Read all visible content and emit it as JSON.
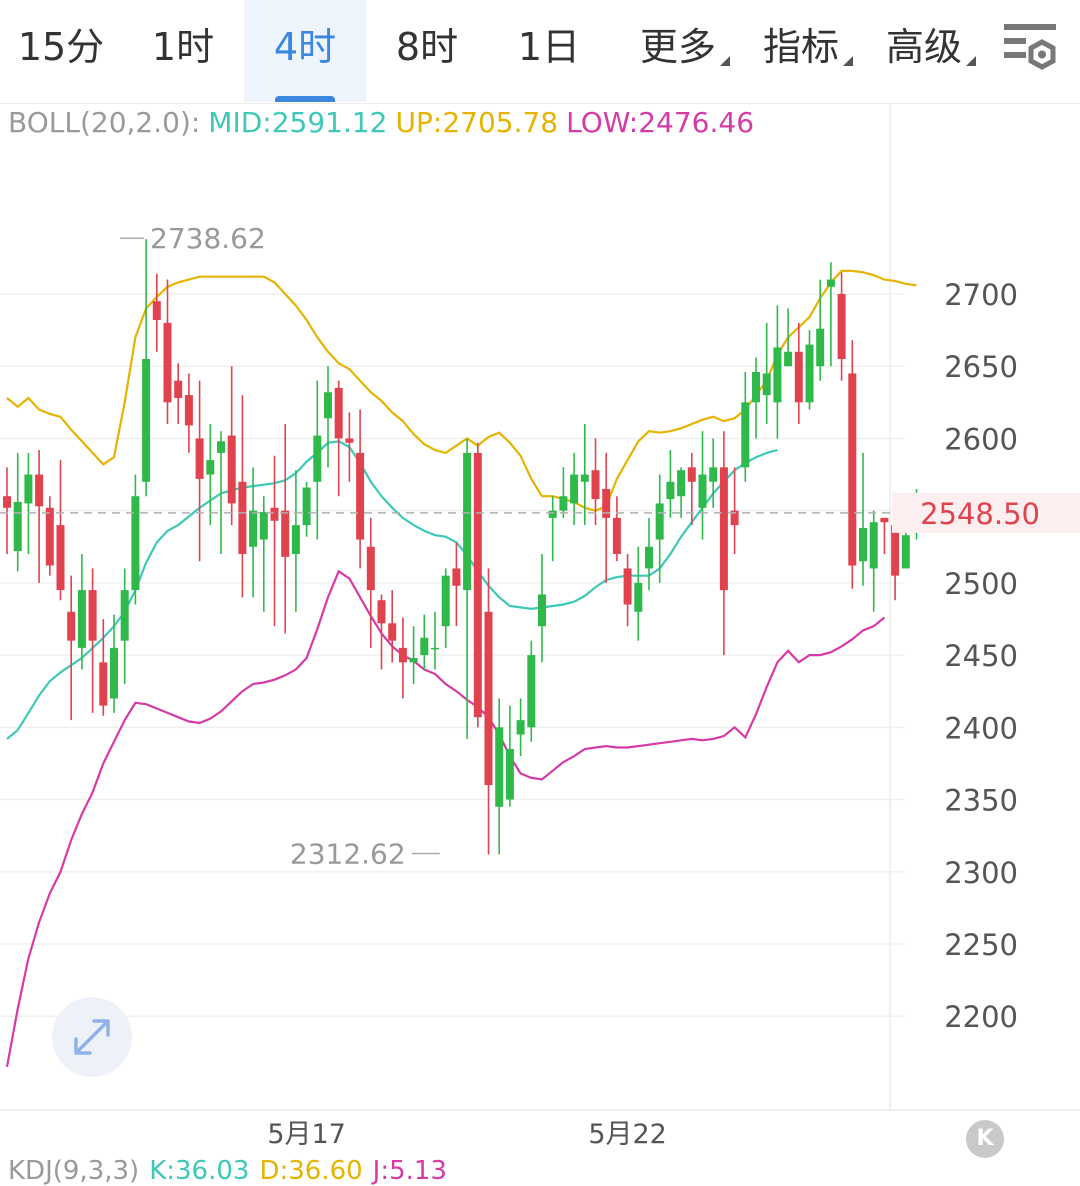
{
  "tabs": [
    {
      "label": "15分"
    },
    {
      "label": "1时"
    },
    {
      "label": "4时",
      "active": true
    },
    {
      "label": "8时"
    },
    {
      "label": "1日"
    },
    {
      "label": "更多",
      "dropdown": true
    },
    {
      "label": "指标",
      "dropdown": true
    },
    {
      "label": "高级",
      "dropdown": true
    }
  ],
  "settings_icon": "chart-settings-icon",
  "boll": {
    "label": "BOLL(20,2.0):",
    "mid": "MID:2591.12",
    "up": "UP:2705.78",
    "low": "LOW:2476.46"
  },
  "kdj": {
    "label": "KDJ(9,3,3)",
    "k": "K:36.03",
    "d": "D:36.60",
    "j": "J:5.13"
  },
  "zoom_icon": "expand-arrows-icon",
  "k_badge": "K",
  "colors": {
    "up": "#2fb94a",
    "down": "#e0434e",
    "mid": "#3ec8b7",
    "upper": "#e6b400",
    "lower": "#d63aa6",
    "active_tab": "#3a86e0",
    "price_tag": "#e0434e"
  },
  "chart_data": {
    "type": "candlestick",
    "y_ticks": [
      "2700",
      "2650",
      "2600",
      "2550",
      "2500",
      "2450",
      "2400",
      "2350",
      "2300",
      "2250",
      "2200"
    ],
    "x_labels": [
      {
        "index": 28,
        "label": "5月17"
      },
      {
        "index": 58,
        "label": "5月22"
      }
    ],
    "ylim": [
      2150,
      2755
    ],
    "current_price": "2548.50",
    "high_marker": {
      "index": 10,
      "value": "2738.62"
    },
    "low_marker": {
      "index": 41,
      "value": "2312.62"
    },
    "grid": true,
    "candles": [
      [
        2560,
        2552,
        2580,
        2520
      ],
      [
        2522,
        2556,
        2590,
        2508
      ],
      [
        2555,
        2575,
        2590,
        2520
      ],
      [
        2575,
        2553,
        2592,
        2500
      ],
      [
        2552,
        2512,
        2560,
        2505
      ],
      [
        2540,
        2495,
        2585,
        2488
      ],
      [
        2480,
        2460,
        2505,
        2405
      ],
      [
        2455,
        2495,
        2520,
        2440
      ],
      [
        2495,
        2460,
        2510,
        2410
      ],
      [
        2445,
        2415,
        2475,
        2408
      ],
      [
        2420,
        2455,
        2478,
        2410
      ],
      [
        2460,
        2495,
        2510,
        2430
      ],
      [
        2495,
        2560,
        2575,
        2485
      ],
      [
        2570,
        2655,
        2738,
        2560
      ],
      [
        2695,
        2682,
        2714,
        2660
      ],
      [
        2680,
        2625,
        2710,
        2610
      ],
      [
        2640,
        2628,
        2652,
        2610
      ],
      [
        2630,
        2609,
        2645,
        2590
      ],
      [
        2600,
        2572,
        2640,
        2515
      ],
      [
        2575,
        2585,
        2610,
        2540
      ],
      [
        2590,
        2598,
        2605,
        2520
      ],
      [
        2602,
        2555,
        2650,
        2540
      ],
      [
        2570,
        2520,
        2630,
        2490
      ],
      [
        2525,
        2550,
        2580,
        2490
      ],
      [
        2530,
        2549,
        2560,
        2480
      ],
      [
        2552,
        2543,
        2588,
        2470
      ],
      [
        2550,
        2518,
        2610,
        2465
      ],
      [
        2520,
        2540,
        2578,
        2480
      ],
      [
        2540,
        2566,
        2570,
        2532
      ],
      [
        2570,
        2602,
        2640,
        2530
      ],
      [
        2614,
        2632,
        2650,
        2580
      ],
      [
        2635,
        2600,
        2640,
        2560
      ],
      [
        2600,
        2597,
        2618,
        2570
      ],
      [
        2590,
        2530,
        2620,
        2510
      ],
      [
        2525,
        2495,
        2545,
        2455
      ],
      [
        2488,
        2472,
        2492,
        2440
      ],
      [
        2472,
        2460,
        2495,
        2445
      ],
      [
        2455,
        2445,
        2476,
        2420
      ],
      [
        2445,
        2448,
        2470,
        2430
      ],
      [
        2450,
        2462,
        2478,
        2440
      ],
      [
        2455,
        2455,
        2480,
        2440
      ],
      [
        2470,
        2505,
        2510,
        2455
      ],
      [
        2510,
        2498,
        2528,
        2470
      ],
      [
        2495,
        2590,
        2600,
        2392
      ],
      [
        2590,
        2407,
        2597,
        2400
      ],
      [
        2480,
        2360,
        2510,
        2312
      ],
      [
        2345,
        2400,
        2420,
        2312
      ],
      [
        2350,
        2385,
        2415,
        2345
      ],
      [
        2395,
        2405,
        2420,
        2380
      ],
      [
        2400,
        2450,
        2460,
        2390
      ],
      [
        2470,
        2492,
        2520,
        2445
      ],
      [
        2545,
        2550,
        2560,
        2515
      ],
      [
        2550,
        2560,
        2580,
        2545
      ],
      [
        2555,
        2575,
        2590,
        2540
      ],
      [
        2570,
        2575,
        2610,
        2540
      ],
      [
        2578,
        2558,
        2600,
        2540
      ],
      [
        2565,
        2545,
        2590,
        2500
      ],
      [
        2545,
        2520,
        2560,
        2515
      ],
      [
        2510,
        2485,
        2520,
        2470
      ],
      [
        2480,
        2500,
        2525,
        2460
      ],
      [
        2510,
        2525,
        2545,
        2495
      ],
      [
        2530,
        2555,
        2575,
        2500
      ],
      [
        2558,
        2570,
        2592,
        2545
      ],
      [
        2560,
        2578,
        2580,
        2545
      ],
      [
        2580,
        2570,
        2590,
        2540
      ],
      [
        2552,
        2575,
        2605,
        2530
      ],
      [
        2570,
        2580,
        2600,
        2552
      ],
      [
        2580,
        2495,
        2605,
        2450
      ],
      [
        2550,
        2540,
        2580,
        2520
      ],
      [
        2580,
        2625,
        2646,
        2570
      ],
      [
        2625,
        2646,
        2656,
        2600
      ],
      [
        2630,
        2645,
        2680,
        2610
      ],
      [
        2625,
        2663,
        2692,
        2600
      ],
      [
        2650,
        2660,
        2690,
        2650
      ],
      [
        2660,
        2625,
        2680,
        2610
      ],
      [
        2625,
        2665,
        2675,
        2620
      ],
      [
        2650,
        2676,
        2710,
        2640
      ],
      [
        2705,
        2710,
        2722,
        2650
      ],
      [
        2700,
        2655,
        2715,
        2640
      ],
      [
        2645,
        2512,
        2668,
        2496
      ],
      [
        2515,
        2538,
        2590,
        2498
      ],
      [
        2510,
        2542,
        2550,
        2480
      ],
      [
        2545,
        2542,
        2545,
        2520
      ],
      [
        2540,
        2505,
        2550,
        2488
      ],
      [
        2510,
        2533,
        2540,
        2512
      ],
      [
        2538,
        2545,
        2565,
        2530
      ]
    ],
    "bands": {
      "upper": [
        [
          0,
          2628
        ],
        [
          1,
          2622
        ],
        [
          2,
          2628
        ],
        [
          3,
          2620
        ],
        [
          4,
          2617
        ],
        [
          5,
          2615
        ],
        [
          6,
          2606
        ],
        [
          7,
          2598
        ],
        [
          8,
          2590
        ],
        [
          9,
          2582
        ],
        [
          10,
          2587
        ],
        [
          11,
          2625
        ],
        [
          12,
          2670
        ],
        [
          13,
          2690
        ],
        [
          14,
          2698
        ],
        [
          15,
          2705
        ],
        [
          16,
          2708
        ],
        [
          17,
          2710
        ],
        [
          18,
          2712
        ],
        [
          19,
          2712
        ],
        [
          20,
          2712
        ],
        [
          21,
          2712
        ],
        [
          22,
          2712
        ],
        [
          23,
          2712
        ],
        [
          24,
          2712
        ],
        [
          25,
          2708
        ],
        [
          26,
          2700
        ],
        [
          27,
          2692
        ],
        [
          28,
          2682
        ],
        [
          29,
          2670
        ],
        [
          30,
          2660
        ],
        [
          31,
          2652
        ],
        [
          32,
          2648
        ],
        [
          33,
          2640
        ],
        [
          34,
          2632
        ],
        [
          35,
          2626
        ],
        [
          36,
          2618
        ],
        [
          37,
          2612
        ],
        [
          38,
          2603
        ],
        [
          39,
          2596
        ],
        [
          40,
          2592
        ],
        [
          41,
          2590
        ],
        [
          42,
          2595
        ],
        [
          43,
          2600
        ],
        [
          44,
          2595
        ],
        [
          45,
          2601
        ],
        [
          46,
          2604
        ],
        [
          47,
          2597
        ],
        [
          48,
          2588
        ],
        [
          49,
          2572
        ],
        [
          50,
          2560
        ],
        [
          51,
          2560
        ],
        [
          52,
          2558
        ],
        [
          53,
          2556
        ],
        [
          54,
          2552
        ],
        [
          55,
          2550
        ],
        [
          56,
          2553
        ],
        [
          57,
          2572
        ],
        [
          58,
          2585
        ],
        [
          59,
          2598
        ],
        [
          60,
          2605
        ],
        [
          61,
          2604
        ],
        [
          62,
          2605
        ],
        [
          63,
          2607
        ],
        [
          64,
          2610
        ],
        [
          65,
          2613
        ],
        [
          66,
          2615
        ],
        [
          67,
          2612
        ],
        [
          68,
          2614
        ],
        [
          69,
          2620
        ],
        [
          70,
          2630
        ],
        [
          71,
          2640
        ],
        [
          72,
          2658
        ],
        [
          73,
          2670
        ],
        [
          74,
          2677
        ],
        [
          75,
          2684
        ],
        [
          76,
          2697
        ],
        [
          77,
          2708
        ],
        [
          78,
          2716
        ],
        [
          79,
          2716
        ],
        [
          80,
          2715
        ],
        [
          81,
          2713
        ],
        [
          82,
          2710
        ],
        [
          83,
          2709
        ],
        [
          84,
          2707
        ],
        [
          85,
          2706
        ]
      ],
      "mid": [
        [
          0,
          2392
        ],
        [
          1,
          2398
        ],
        [
          2,
          2410
        ],
        [
          3,
          2422
        ],
        [
          4,
          2432
        ],
        [
          5,
          2438
        ],
        [
          6,
          2443
        ],
        [
          7,
          2448
        ],
        [
          8,
          2455
        ],
        [
          9,
          2462
        ],
        [
          10,
          2470
        ],
        [
          11,
          2480
        ],
        [
          12,
          2495
        ],
        [
          13,
          2514
        ],
        [
          14,
          2528
        ],
        [
          15,
          2536
        ],
        [
          16,
          2540
        ],
        [
          17,
          2546
        ],
        [
          18,
          2552
        ],
        [
          19,
          2557
        ],
        [
          20,
          2562
        ],
        [
          21,
          2564
        ],
        [
          22,
          2566
        ],
        [
          23,
          2567
        ],
        [
          24,
          2568
        ],
        [
          25,
          2569
        ],
        [
          26,
          2571
        ],
        [
          27,
          2576
        ],
        [
          28,
          2584
        ],
        [
          29,
          2590
        ],
        [
          30,
          2597
        ],
        [
          31,
          2598
        ],
        [
          32,
          2594
        ],
        [
          33,
          2583
        ],
        [
          34,
          2570
        ],
        [
          35,
          2560
        ],
        [
          36,
          2552
        ],
        [
          37,
          2545
        ],
        [
          38,
          2540
        ],
        [
          39,
          2536
        ],
        [
          40,
          2533
        ],
        [
          41,
          2532
        ],
        [
          42,
          2528
        ],
        [
          43,
          2519
        ],
        [
          44,
          2508
        ],
        [
          45,
          2498
        ],
        [
          46,
          2490
        ],
        [
          47,
          2484
        ],
        [
          48,
          2483
        ],
        [
          49,
          2482
        ],
        [
          50,
          2483
        ],
        [
          51,
          2484
        ],
        [
          52,
          2485
        ],
        [
          53,
          2487
        ],
        [
          54,
          2491
        ],
        [
          55,
          2497
        ],
        [
          56,
          2502
        ],
        [
          57,
          2504
        ],
        [
          58,
          2505
        ],
        [
          59,
          2505
        ],
        [
          60,
          2505
        ],
        [
          61,
          2510
        ],
        [
          62,
          2520
        ],
        [
          63,
          2532
        ],
        [
          64,
          2542
        ],
        [
          65,
          2552
        ],
        [
          66,
          2562
        ],
        [
          67,
          2570
        ],
        [
          68,
          2578
        ],
        [
          69,
          2583
        ],
        [
          70,
          2587
        ],
        [
          71,
          2590
        ],
        [
          72,
          2592
        ]
      ],
      "lower": [
        [
          0,
          2165
        ],
        [
          1,
          2205
        ],
        [
          2,
          2240
        ],
        [
          3,
          2265
        ],
        [
          4,
          2285
        ],
        [
          5,
          2300
        ],
        [
          6,
          2322
        ],
        [
          7,
          2340
        ],
        [
          8,
          2355
        ],
        [
          9,
          2375
        ],
        [
          10,
          2390
        ],
        [
          11,
          2405
        ],
        [
          12,
          2417
        ],
        [
          13,
          2416
        ],
        [
          14,
          2413
        ],
        [
          15,
          2410
        ],
        [
          16,
          2407
        ],
        [
          17,
          2404
        ],
        [
          18,
          2403
        ],
        [
          19,
          2406
        ],
        [
          20,
          2411
        ],
        [
          21,
          2418
        ],
        [
          22,
          2425
        ],
        [
          23,
          2430
        ],
        [
          24,
          2431
        ],
        [
          25,
          2433
        ],
        [
          26,
          2436
        ],
        [
          27,
          2440
        ],
        [
          28,
          2448
        ],
        [
          29,
          2468
        ],
        [
          30,
          2490
        ],
        [
          31,
          2508
        ],
        [
          32,
          2503
        ],
        [
          33,
          2490
        ],
        [
          34,
          2477
        ],
        [
          35,
          2465
        ],
        [
          36,
          2456
        ],
        [
          37,
          2450
        ],
        [
          38,
          2446
        ],
        [
          39,
          2440
        ],
        [
          40,
          2437
        ],
        [
          41,
          2430
        ],
        [
          42,
          2425
        ],
        [
          43,
          2419
        ],
        [
          44,
          2414
        ],
        [
          45,
          2407
        ],
        [
          46,
          2395
        ],
        [
          47,
          2380
        ],
        [
          48,
          2368
        ],
        [
          49,
          2365
        ],
        [
          50,
          2364
        ],
        [
          51,
          2370
        ],
        [
          52,
          2376
        ],
        [
          53,
          2380
        ],
        [
          54,
          2385
        ],
        [
          55,
          2386
        ],
        [
          56,
          2387
        ],
        [
          57,
          2386
        ],
        [
          58,
          2386
        ],
        [
          59,
          2387
        ],
        [
          60,
          2388
        ],
        [
          61,
          2389
        ],
        [
          62,
          2390
        ],
        [
          63,
          2391
        ],
        [
          64,
          2392
        ],
        [
          65,
          2391
        ],
        [
          66,
          2392
        ],
        [
          67,
          2394
        ],
        [
          68,
          2400
        ],
        [
          69,
          2393
        ],
        [
          70,
          2409
        ],
        [
          71,
          2428
        ],
        [
          72,
          2445
        ],
        [
          73,
          2453
        ],
        [
          74,
          2445
        ],
        [
          75,
          2450
        ],
        [
          76,
          2450
        ],
        [
          77,
          2452
        ],
        [
          78,
          2456
        ],
        [
          79,
          2461
        ],
        [
          80,
          2467
        ],
        [
          81,
          2470
        ],
        [
          82,
          2476
        ]
      ]
    }
  }
}
